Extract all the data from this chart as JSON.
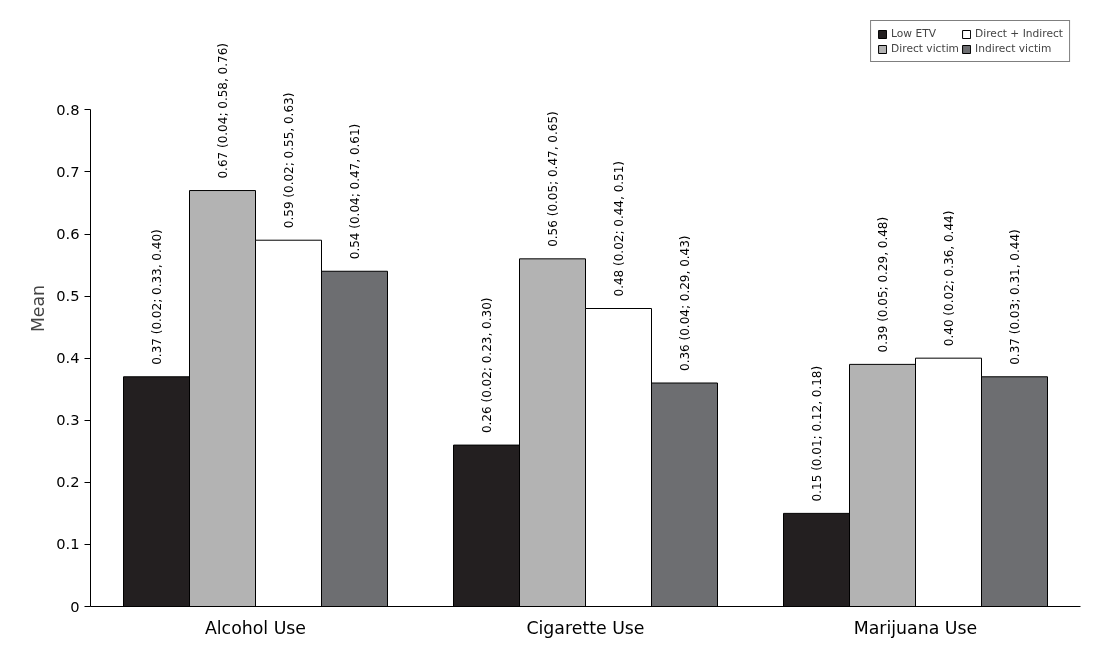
{
  "chart_data": {
    "type": "bar",
    "ylabel": "Mean",
    "categories": [
      "Alcohol Use",
      "Cigarette Use",
      "Marijuana Use"
    ],
    "ylim": [
      0,
      0.8
    ],
    "yticks": [
      0,
      0.1,
      0.2,
      0.3,
      0.4,
      0.5,
      0.6,
      0.7,
      0.8
    ],
    "grid": false,
    "legend": "top right",
    "series": [
      {
        "name": "Low ETV",
        "color": "#231f20",
        "values": [
          0.37,
          0.26,
          0.15
        ],
        "value_labels": [
          "0.37 (0.02; 0.33, 0.40)",
          "0.26 (0.02; 0.23, 0.30)",
          "0.15 (0.01; 0.12, 0.18)"
        ]
      },
      {
        "name": "Direct victim",
        "color": "#b3b3b3",
        "values": [
          0.67,
          0.56,
          0.39
        ],
        "value_labels": [
          "0.67 (0.04; 0.58, 0.76)",
          "0.56 (0.05; 0.47, 0.65)",
          "0.39 (0.05; 0.29, 0.48)"
        ]
      },
      {
        "name": "Direct + Indirect",
        "color": "#ffffff",
        "values": [
          0.59,
          0.48,
          0.4
        ],
        "value_labels": [
          "0.59 (0.02; 0.55, 0.63)",
          "0.48 (0.02; 0.44, 0.51)",
          "0.40 (0.02; 0.36, 0.44)"
        ]
      },
      {
        "name": "Indirect victim",
        "color": "#6d6e71",
        "values": [
          0.54,
          0.36,
          0.37
        ],
        "value_labels": [
          "0.54 (0.04; 0.47, 0.61)",
          "0.36 (0.04; 0.29, 0.43)",
          "0.37 (0.03; 0.31, 0.44)"
        ]
      }
    ]
  }
}
